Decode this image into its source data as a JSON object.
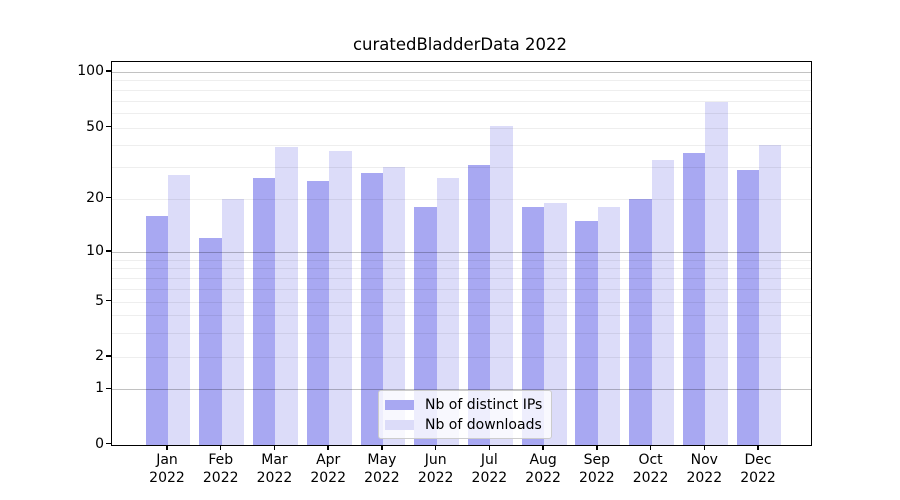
{
  "chart_data": {
    "type": "bar",
    "title": "curatedBladderData 2022",
    "year": "2022",
    "months": [
      "Jan",
      "Feb",
      "Mar",
      "Apr",
      "May",
      "Jun",
      "Jul",
      "Aug",
      "Sep",
      "Oct",
      "Nov",
      "Dec"
    ],
    "series": [
      {
        "name": "Nb of distinct IPs",
        "color": "#a8a8f2",
        "values": [
          16,
          12,
          26,
          25,
          28,
          18,
          31,
          18,
          15,
          20,
          36,
          29
        ]
      },
      {
        "name": "Nb of downloads",
        "color": "#dcdcf9",
        "values": [
          27,
          20,
          39,
          37,
          30,
          26,
          51,
          19,
          18,
          33,
          69,
          40
        ]
      }
    ],
    "yscale": "log-like",
    "yticks": [
      100,
      50,
      20,
      10,
      5,
      2,
      1,
      0
    ],
    "ytick_labels": [
      "100",
      "50",
      "20",
      "10",
      "5",
      "2",
      "1",
      "0"
    ],
    "major_gridlines": [
      1,
      10,
      100
    ],
    "minor_gridlines": [
      2,
      3,
      4,
      5,
      6,
      7,
      8,
      9,
      20,
      30,
      40,
      50,
      60,
      70,
      80,
      90
    ],
    "grid": true,
    "legend_position": "lower center inside plot",
    "xlabel": "",
    "ylabel": ""
  }
}
